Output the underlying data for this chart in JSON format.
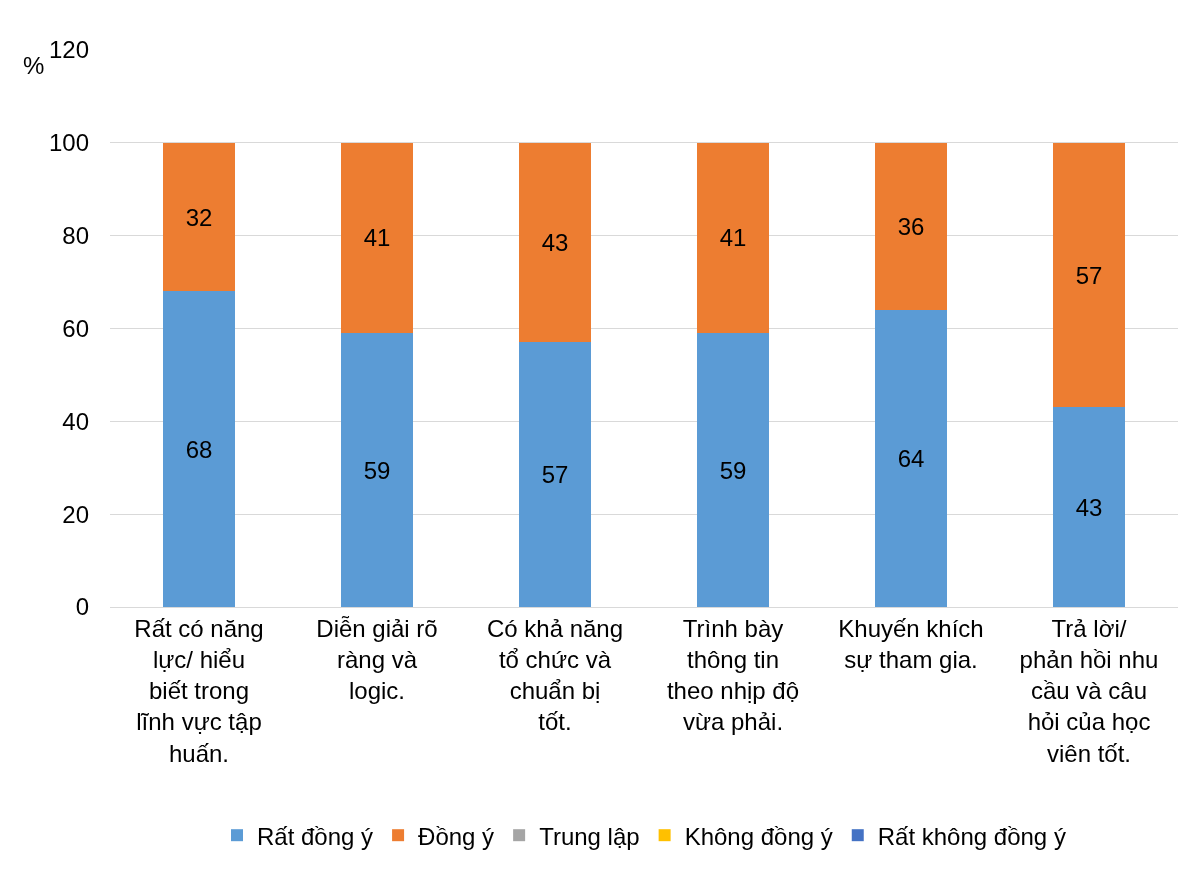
{
  "chart_data": {
    "type": "bar",
    "stacked": true,
    "ylabel": "%",
    "categories": [
      "Rất có năng lực/ hiểu biết trong lĩnh vực tập huấn.",
      "Diễn giải rõ ràng và logic.",
      "Có khả năng tổ chức và chuẩn bị tốt.",
      "Trình bày thông tin theo nhịp độ vừa phải.",
      "Khuyến khích sự tham gia.",
      "Trả lời/ phản hồi nhu cầu và câu hỏi của học viên tốt."
    ],
    "series": [
      {
        "name": "Rất đồng ý",
        "color": "#5b9bd5",
        "values": [
          68,
          59,
          57,
          59,
          64,
          43
        ],
        "value_labels": [
          "68",
          "59",
          "57",
          "59",
          "64",
          "43"
        ]
      },
      {
        "name": "Đồng ý",
        "color": "#ed7d31",
        "values": [
          32,
          41,
          43,
          41,
          36,
          57
        ],
        "value_labels": [
          "32",
          "41",
          "43",
          "41",
          "36",
          "57"
        ]
      },
      {
        "name": "Trung lập",
        "color": "#a5a5a5",
        "values": [
          0,
          0,
          0,
          0,
          0,
          0
        ],
        "value_labels": [
          null,
          null,
          null,
          null,
          null,
          null
        ]
      },
      {
        "name": "Không đồng ý",
        "color": "#ffc000",
        "values": [
          0,
          0,
          0,
          0,
          0,
          0
        ],
        "value_labels": [
          null,
          null,
          null,
          null,
          null,
          null
        ]
      },
      {
        "name": "Rất không đồng ý",
        "color": "#4472c4",
        "values": [
          0,
          0,
          0,
          0,
          0,
          0
        ],
        "value_labels": [
          null,
          null,
          null,
          null,
          null,
          null
        ]
      }
    ],
    "ylim": [
      0,
      120
    ],
    "yticks": [
      0,
      20,
      40,
      60,
      80,
      100,
      120
    ],
    "grid": "y",
    "legend": "bottom"
  }
}
